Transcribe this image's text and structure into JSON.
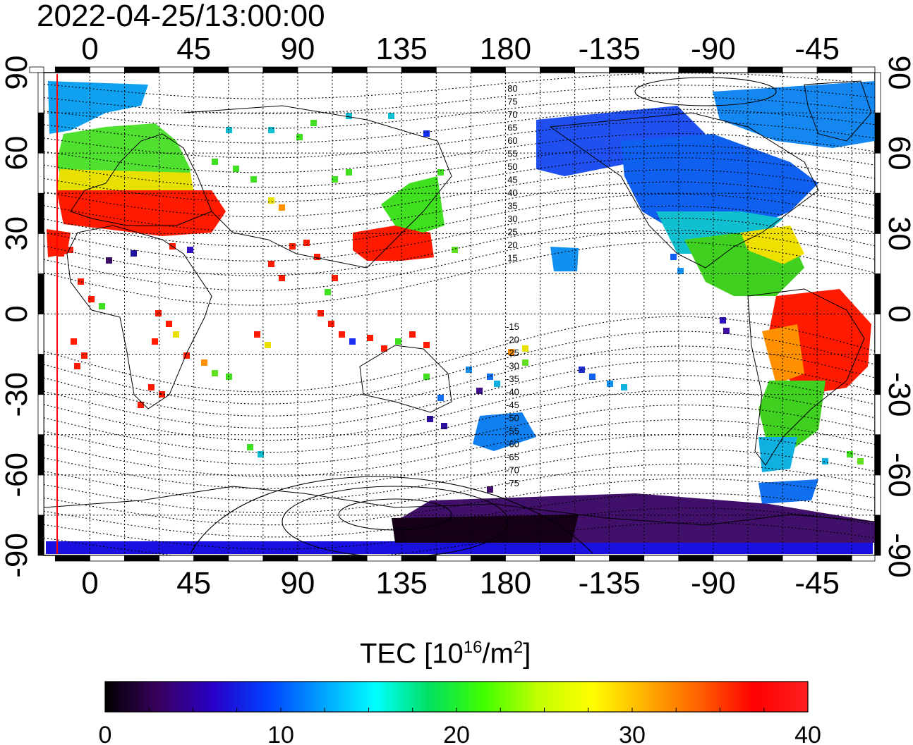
{
  "title": "2022-04-25/13:00:00",
  "map": {
    "top_lon_ticks": [
      "0",
      "45",
      "90",
      "135",
      "180",
      "-135",
      "-90",
      "-45"
    ],
    "bottom_lon_ticks": [
      "0",
      "45",
      "90",
      "135",
      "180",
      "-135",
      "-90",
      "-45"
    ],
    "left_lat_ticks": [
      "90",
      "60",
      "30",
      "0",
      "-30",
      "-60",
      "-90"
    ],
    "right_lat_ticks": [
      "90",
      "60",
      "30",
      "0",
      "-30",
      "-60",
      "-90"
    ],
    "geomag_labels_north": [
      "80",
      "75",
      "70",
      "65",
      "60",
      "55",
      "50",
      "45",
      "40",
      "35",
      "30",
      "25",
      "20",
      "15"
    ],
    "geomag_labels_south": [
      "-15",
      "-20",
      "-25",
      "-30",
      "-35",
      "-40",
      "-45",
      "-50",
      "-55",
      "-60",
      "-65",
      "-70",
      "-75"
    ],
    "lon_range": [
      -20,
      340
    ],
    "lat_range": [
      -90,
      90
    ],
    "terminator_lon": -15
  },
  "colorbar": {
    "label_main": "TEC  [10",
    "label_exp": "16",
    "label_unit": "/m",
    "label_unit_exp": "2",
    "label_close": "]",
    "ticks": [
      "0",
      "10",
      "20",
      "30",
      "40"
    ],
    "min": 0,
    "max": 40,
    "stops": [
      "#000000",
      "#3a0060",
      "#2800c8",
      "#0040ff",
      "#00a0ff",
      "#00ffff",
      "#00e060",
      "#40ff00",
      "#c0ff00",
      "#ffff00",
      "#ffb000",
      "#ff6000",
      "#ff0000",
      "#ff2020"
    ]
  }
}
